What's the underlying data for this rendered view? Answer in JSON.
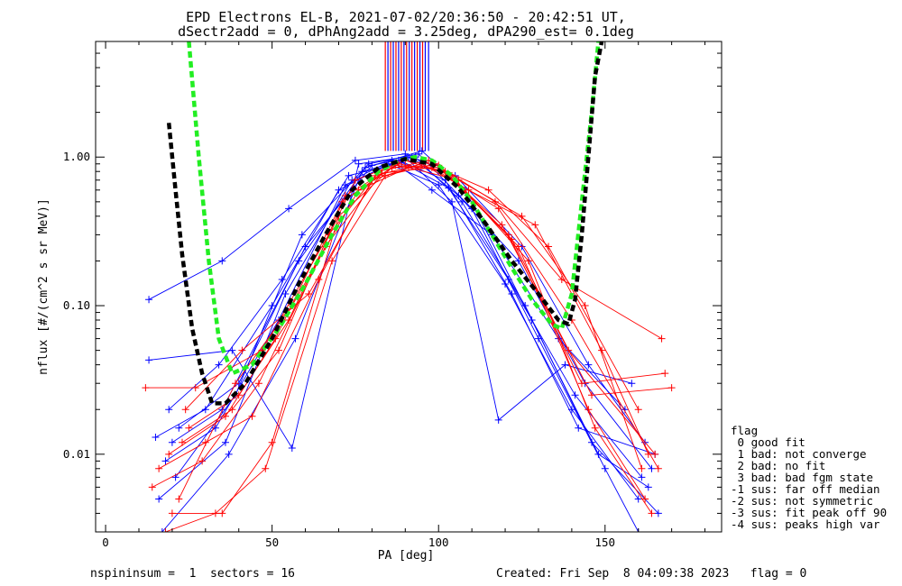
{
  "chart_data": {
    "type": "line",
    "title": "EPD Electrons EL-B, 2021-07-02/20:36:50 - 20:42:51 UT,",
    "subtitle": "dSectr2add = 0, dPhAng2add = 3.25deg, dPA290_est=   0.1deg",
    "xlabel": "PA [deg]",
    "ylabel": "nflux [#/(cm^2 s sr MeV)]",
    "xlim": [
      -3,
      185
    ],
    "ylim": [
      0.003,
      6.0
    ],
    "y_scale": "log",
    "x_ticks": [
      0,
      50,
      100,
      150
    ],
    "x_tick_labels": [
      "0",
      "50",
      "100",
      "150"
    ],
    "y_ticks": [
      0.01,
      0.1,
      1.0
    ],
    "y_tick_labels": [
      "0.01",
      "0.10",
      "1.00"
    ],
    "colors": {
      "red": "#ff0000",
      "blue": "#0000ff",
      "green": "#22ee22",
      "black": "#000000"
    },
    "series": [
      {
        "color": "#0000ff",
        "x": [
          13,
          35,
          55,
          75,
          90,
          105,
          125,
          145,
          162
        ],
        "y": [
          0.11,
          0.2,
          0.45,
          0.95,
          1.05,
          0.75,
          0.25,
          0.04,
          0.012
        ]
      },
      {
        "color": "#0000ff",
        "x": [
          15,
          30,
          50,
          70,
          85,
          100,
          120,
          140,
          160
        ],
        "y": [
          0.013,
          0.02,
          0.1,
          0.6,
          0.9,
          0.65,
          0.14,
          0.02,
          0.005
        ]
      },
      {
        "color": "#0000ff",
        "x": [
          18,
          33,
          52,
          72,
          88,
          102,
          122,
          142,
          165
        ],
        "y": [
          0.009,
          0.015,
          0.08,
          0.65,
          0.95,
          0.7,
          0.12,
          0.015,
          0.01
        ]
      },
      {
        "color": "#0000ff",
        "x": [
          20,
          35,
          58,
          78,
          95,
          108,
          128,
          148,
          163
        ],
        "y": [
          0.012,
          0.02,
          0.2,
          0.85,
          1.1,
          0.6,
          0.08,
          0.01,
          0.006
        ]
      },
      {
        "color": "#0000ff",
        "x": [
          13,
          38,
          56,
          76,
          90,
          104,
          118,
          138,
          158
        ],
        "y": [
          0.043,
          0.05,
          0.011,
          0.9,
          1.0,
          0.5,
          0.017,
          0.04,
          0.03
        ]
      },
      {
        "color": "#0000ff",
        "x": [
          16,
          36,
          54,
          74,
          86,
          98,
          116,
          136,
          156
        ],
        "y": [
          0.005,
          0.012,
          0.12,
          0.7,
          0.95,
          0.6,
          0.3,
          0.06,
          0.02
        ]
      },
      {
        "color": "#0000ff",
        "x": [
          22,
          40,
          60,
          80,
          92,
          106,
          124,
          144,
          164
        ],
        "y": [
          0.015,
          0.03,
          0.25,
          0.88,
          1.0,
          0.55,
          0.2,
          0.03,
          0.008
        ]
      },
      {
        "color": "#0000ff",
        "x": [
          19,
          34,
          53,
          73,
          89,
          103,
          121,
          141,
          161
        ],
        "y": [
          0.02,
          0.04,
          0.15,
          0.75,
          0.92,
          0.62,
          0.15,
          0.025,
          0.007
        ]
      },
      {
        "color": "#0000ff",
        "x": [
          17,
          37,
          57,
          77,
          93,
          107,
          126,
          146,
          166
        ],
        "y": [
          0.003,
          0.01,
          0.06,
          0.8,
          1.0,
          0.5,
          0.1,
          0.012,
          0.004
        ]
      },
      {
        "color": "#0000ff",
        "x": [
          21,
          39,
          59,
          79,
          94,
          110,
          130,
          150,
          160
        ],
        "y": [
          0.007,
          0.025,
          0.3,
          0.9,
          1.05,
          0.45,
          0.06,
          0.008,
          0.003
        ]
      },
      {
        "color": "#ff0000",
        "x": [
          12,
          27,
          47,
          67,
          82,
          97,
          117,
          137,
          167
        ],
        "y": [
          0.028,
          0.028,
          0.05,
          0.3,
          0.8,
          0.95,
          0.5,
          0.15,
          0.06
        ]
      },
      {
        "color": "#ff0000",
        "x": [
          18,
          33,
          48,
          68,
          84,
          99,
          119,
          139,
          165
        ],
        "y": [
          0.003,
          0.004,
          0.008,
          0.2,
          0.75,
          0.9,
          0.35,
          0.05,
          0.01
        ]
      },
      {
        "color": "#ff0000",
        "x": [
          20,
          35,
          50,
          70,
          86,
          100,
          121,
          143,
          168
        ],
        "y": [
          0.004,
          0.004,
          0.012,
          0.4,
          0.85,
          0.88,
          0.3,
          0.03,
          0.035
        ]
      },
      {
        "color": "#ff0000",
        "x": [
          16,
          30,
          44,
          64,
          80,
          96,
          115,
          133,
          160
        ],
        "y": [
          0.008,
          0.012,
          0.018,
          0.15,
          0.7,
          0.92,
          0.6,
          0.25,
          0.02
        ]
      },
      {
        "color": "#ff0000",
        "x": [
          23,
          38,
          52,
          72,
          88,
          102,
          124,
          145,
          162
        ],
        "y": [
          0.012,
          0.02,
          0.05,
          0.55,
          0.9,
          0.8,
          0.25,
          0.02,
          0.005
        ]
      },
      {
        "color": "#ff0000",
        "x": [
          25,
          40,
          55,
          75,
          90,
          104,
          127,
          147,
          164
        ],
        "y": [
          0.015,
          0.025,
          0.08,
          0.7,
          0.95,
          0.75,
          0.2,
          0.015,
          0.004
        ]
      },
      {
        "color": "#ff0000",
        "x": [
          14,
          29,
          46,
          66,
          83,
          98,
          118,
          140,
          166
        ],
        "y": [
          0.006,
          0.009,
          0.03,
          0.25,
          0.78,
          0.85,
          0.45,
          0.08,
          0.008
        ]
      },
      {
        "color": "#ff0000",
        "x": [
          19,
          36,
          51,
          71,
          87,
          101,
          122,
          146,
          170
        ],
        "y": [
          0.01,
          0.018,
          0.06,
          0.5,
          0.88,
          0.82,
          0.28,
          0.025,
          0.028
        ]
      },
      {
        "color": "#ff0000",
        "x": [
          24,
          41,
          61,
          81,
          95,
          109,
          129,
          149,
          163
        ],
        "y": [
          0.02,
          0.05,
          0.12,
          0.75,
          0.9,
          0.6,
          0.35,
          0.05,
          0.01
        ]
      },
      {
        "color": "#ff0000",
        "x": [
          22,
          39,
          56,
          76,
          91,
          106,
          125,
          144,
          161
        ],
        "y": [
          0.005,
          0.03,
          0.1,
          0.6,
          0.85,
          0.7,
          0.4,
          0.1,
          0.008
        ]
      }
    ],
    "fit_curves": [
      {
        "name": "green",
        "color": "#22ee22",
        "x": [
          25,
          28,
          31,
          34,
          38,
          44,
          52,
          60,
          68,
          75,
          82,
          88,
          93,
          98,
          104,
          110,
          116,
          122,
          128,
          134,
          137,
          140,
          143,
          146,
          148
        ],
        "y": [
          6.0,
          1.0,
          0.2,
          0.06,
          0.035,
          0.04,
          0.07,
          0.14,
          0.3,
          0.55,
          0.8,
          0.95,
          1.0,
          0.95,
          0.75,
          0.5,
          0.3,
          0.18,
          0.11,
          0.075,
          0.07,
          0.12,
          0.5,
          2.0,
          6.0
        ]
      },
      {
        "name": "black",
        "color": "#000000",
        "x": [
          19,
          21,
          23,
          26,
          29,
          32,
          36,
          42,
          50,
          58,
          66,
          74,
          82,
          90,
          98,
          106,
          114,
          122,
          130,
          136,
          139,
          141,
          143,
          145,
          147,
          149
        ],
        "y": [
          1.7,
          0.6,
          0.22,
          0.07,
          0.035,
          0.022,
          0.022,
          0.03,
          0.06,
          0.14,
          0.3,
          0.6,
          0.85,
          0.97,
          0.9,
          0.62,
          0.36,
          0.2,
          0.12,
          0.08,
          0.075,
          0.11,
          0.3,
          1.0,
          3.5,
          6.0
        ]
      }
    ],
    "saturated_lines": [
      {
        "color": "#ff0000",
        "x": 84.0
      },
      {
        "color": "#0000ff",
        "x": 84.8
      },
      {
        "color": "#ff0000",
        "x": 85.6
      },
      {
        "color": "#0000ff",
        "x": 86.4
      },
      {
        "color": "#ff0000",
        "x": 87.2
      },
      {
        "color": "#0000ff",
        "x": 88.0
      },
      {
        "color": "#ff0000",
        "x": 88.8
      },
      {
        "color": "#0000ff",
        "x": 89.6
      },
      {
        "color": "#ff0000",
        "x": 90.4
      },
      {
        "color": "#0000ff",
        "x": 91.2
      },
      {
        "color": "#ff0000",
        "x": 92.0
      },
      {
        "color": "#0000ff",
        "x": 92.8
      },
      {
        "color": "#ff0000",
        "x": 93.6
      },
      {
        "color": "#0000ff",
        "x": 94.4
      },
      {
        "color": "#ff0000",
        "x": 95.2
      },
      {
        "color": "#0000ff",
        "x": 96.0
      },
      {
        "color": "#0000ff",
        "x": 97.0
      }
    ],
    "saturated_y_range": [
      1.1,
      6.0
    ]
  },
  "legend": {
    "title": "flag",
    "items": [
      " 0 good fit",
      " 1 bad: not converge",
      " 2 bad: no fit",
      " 3 bad: bad fgm state",
      "-1 sus: far off median",
      "-2 sus: not symmetric",
      "-3 sus: fit peak off 90",
      "-4 sus: peaks high var"
    ]
  },
  "footer": {
    "left": "nspininsum =  1  sectors = 16",
    "right": "Created: Fri Sep  8 04:09:38 2023   flag = 0"
  }
}
